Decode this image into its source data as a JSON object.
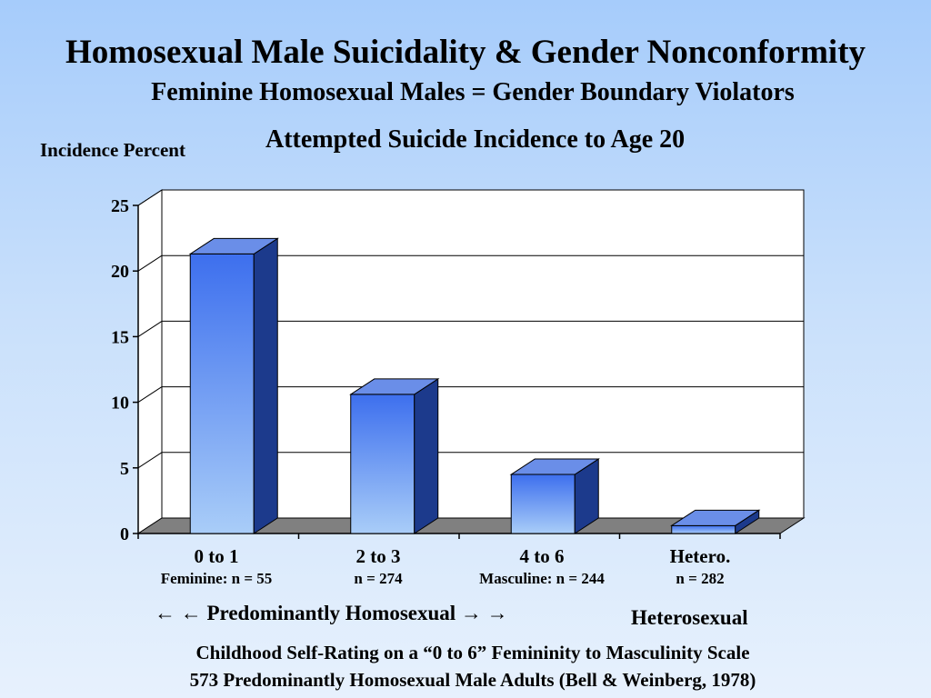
{
  "slide": {
    "title": "Homosexual Male Suicidality & Gender Nonconformity",
    "subtitle": "Feminine Homosexual Males = Gender Boundary Violators"
  },
  "scale": {
    "left_label": "← ← Predominantly Homosexual → →",
    "right_label": "Heterosexual"
  },
  "footnotes": [
    "Childhood Self-Rating on a “0 to 6” Femininity to Masculinity Scale",
    "573 Predominantly Homosexual Male Adults (Bell & Weinberg, 1978)"
  ],
  "colors": {
    "bar_front_dark": "#3d6fee",
    "bar_front_light": "#a9cdf8",
    "bar_side": "#1c3a8c",
    "bar_top": "#6a8ee8",
    "floor": "#808080",
    "gridline": "#000000"
  },
  "chart_data": {
    "type": "bar",
    "style": "3d",
    "title": "Attempted Suicide Incidence to Age 20",
    "ylabel": "Incidence Percent",
    "xlabel": "",
    "ylim": [
      0,
      25
    ],
    "yticks": [
      0,
      5,
      10,
      15,
      20,
      25
    ],
    "yticks_labels": [
      "0",
      "5",
      "10",
      "15",
      "20",
      "25"
    ],
    "grid": true,
    "legend": "none",
    "categories": [
      "0 to 1",
      "2 to 3",
      "4 to 6",
      "Hetero."
    ],
    "category_notes": [
      "Feminine: n = 55",
      "n = 274",
      "Masculine: n = 244",
      "n = 282"
    ],
    "values": [
      21.3,
      10.6,
      4.5,
      0.6
    ]
  }
}
